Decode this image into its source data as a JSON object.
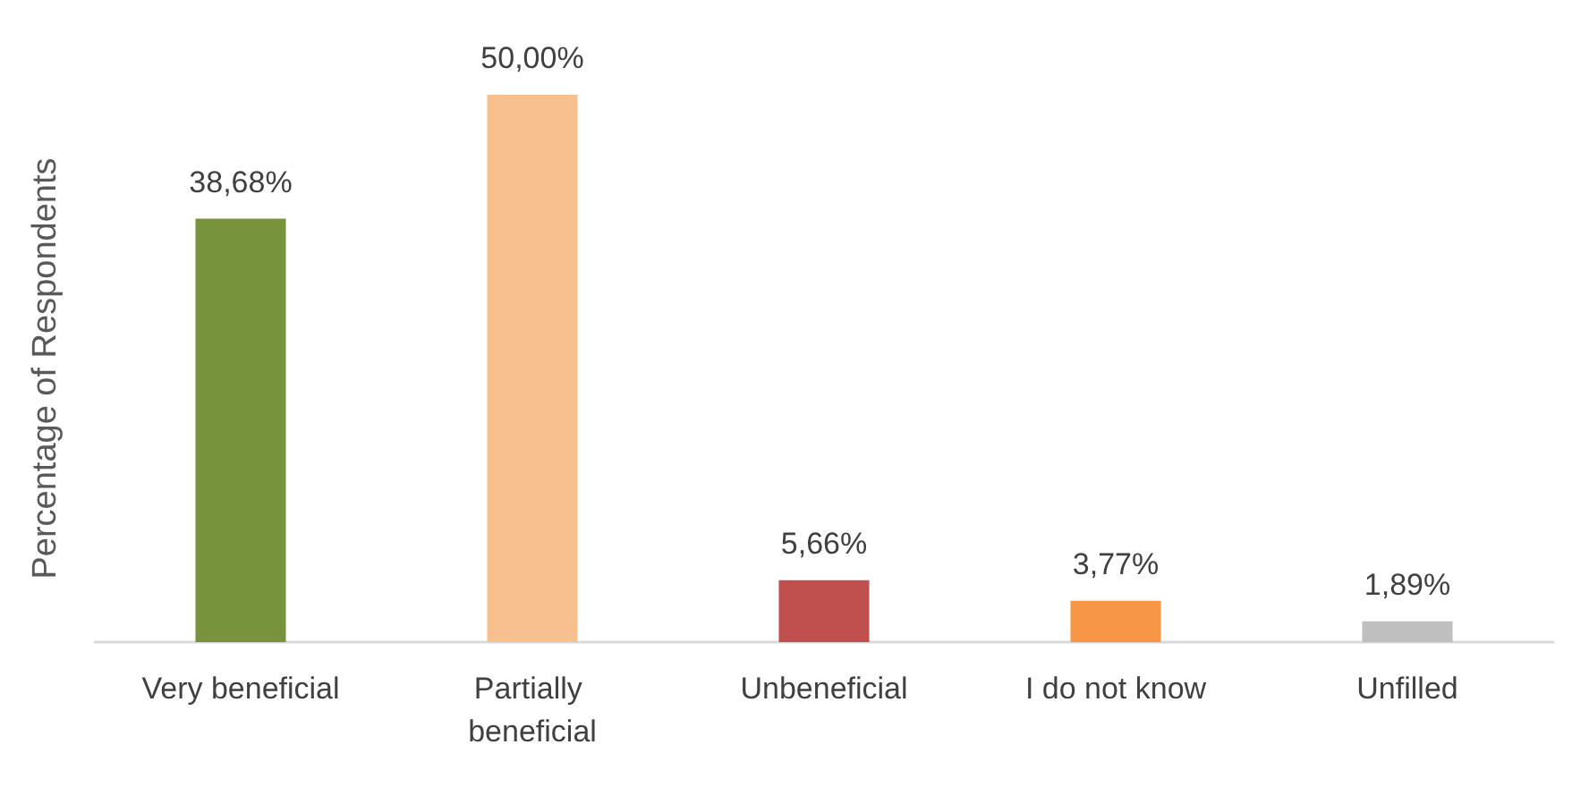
{
  "chart_data": {
    "type": "bar",
    "ylabel": "Percentage of Respondents",
    "categories": [
      "Very beneficial",
      "Partially beneficial",
      "Unbeneficial",
      "I do not know",
      "Unfilled"
    ],
    "values": [
      38.68,
      50,
      5.66,
      3.77,
      1.89
    ],
    "colors": [
      "#77933c",
      "#f9c08f",
      "#c0504d",
      "#f79646",
      "#bfbfbf"
    ],
    "value_labels": [
      "38,68%",
      "50,00%",
      "5,66%",
      "3,77%",
      "1,89%"
    ]
  }
}
